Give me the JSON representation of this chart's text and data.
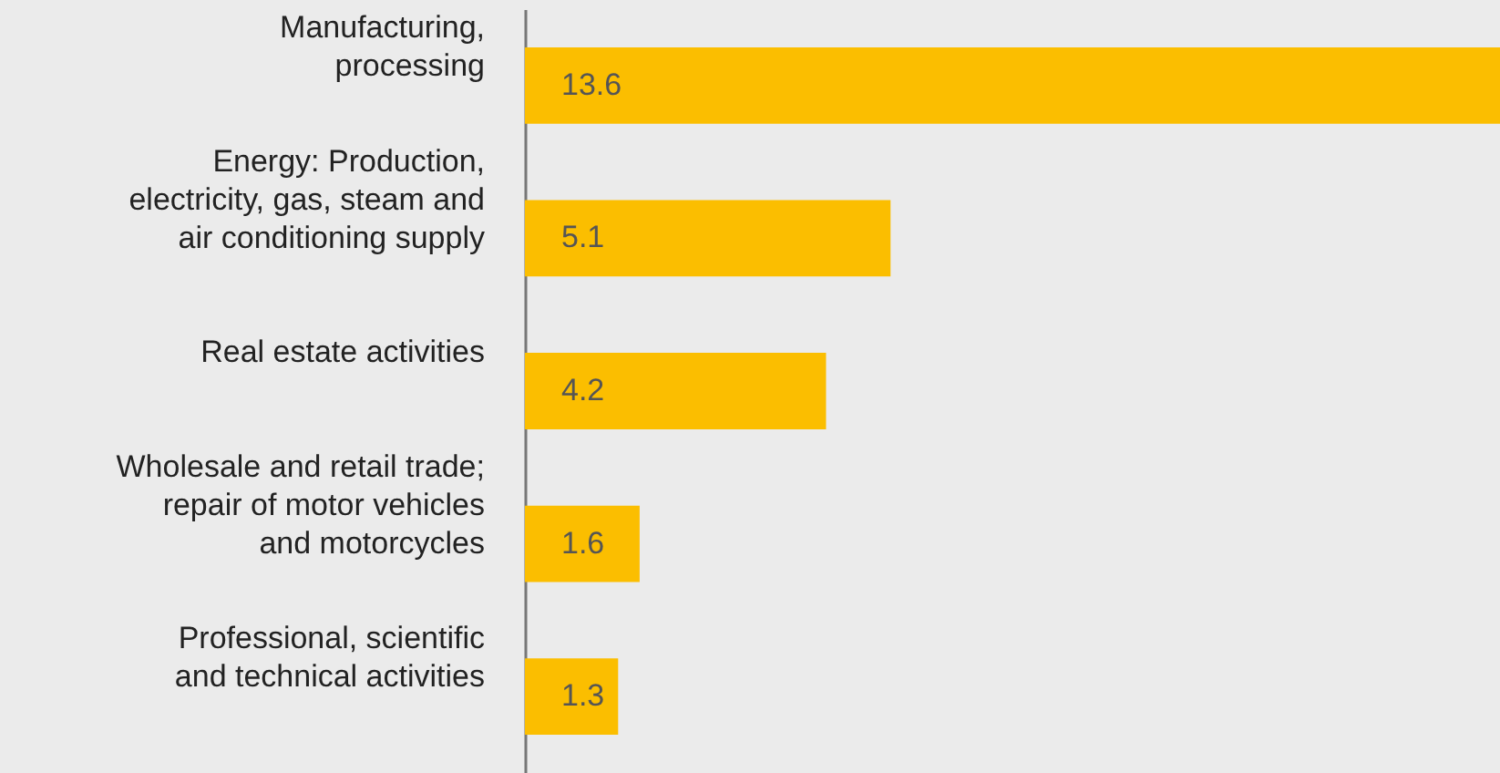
{
  "chart_data": {
    "type": "bar",
    "orientation": "horizontal",
    "categories": [
      "Manufacturing,\nprocessing",
      "Energy: Production,\nelectricity, gas, steam and\nair conditioning supply",
      "Real estate activities",
      "Wholesale and retail trade;\nrepair of motor vehicles\nand motorcycles",
      "Professional, scientific\nand technical activities"
    ],
    "values": [
      13.6,
      5.1,
      4.2,
      1.6,
      1.3
    ],
    "color": "#fbbe00",
    "data_labels": true,
    "grid": false
  }
}
